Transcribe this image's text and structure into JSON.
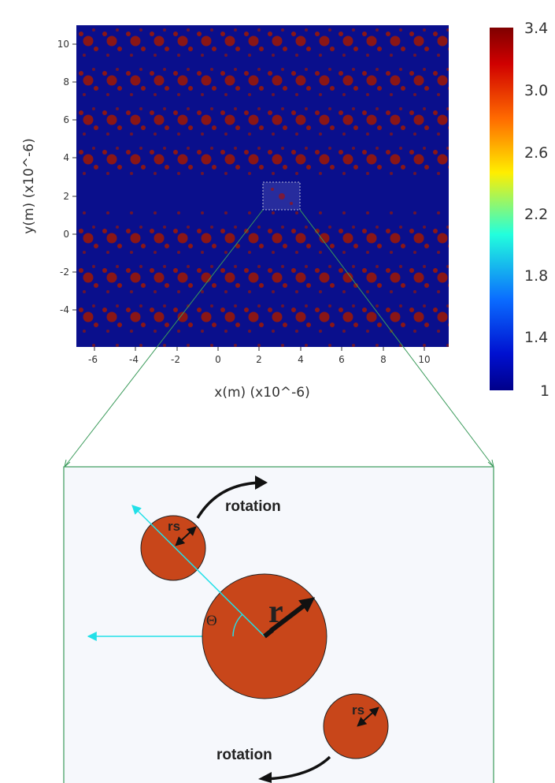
{
  "heatmap": {
    "x_ticks": [
      "-6",
      "-4",
      "-2",
      "0",
      "2",
      "4",
      "6",
      "8",
      "10"
    ],
    "y_ticks": [
      "10",
      "8",
      "6",
      "4",
      "2",
      "0",
      "-2",
      "-4"
    ],
    "xlabel": "x(m) (x10^-6)",
    "ylabel": "y(m) (x10^-6)",
    "background_color": "#0a0f8c",
    "feature_color": "#8a1616"
  },
  "colorbar": {
    "labels": [
      "3.4",
      "3.0",
      "2.6",
      "2.2",
      "1.8",
      "1.4",
      "1"
    ],
    "gradient": [
      "#7f0000",
      "#ee0000",
      "#ff8c00",
      "#ffff00",
      "#00ffff",
      "#0060ff",
      "#00008f"
    ]
  },
  "inset": {
    "big_radius_label": "r",
    "small_radius_label": "rs",
    "angle_label": "Θ",
    "rotation_label": "rotation",
    "particle_color": "#c8461a",
    "line_color": "#22e0e8",
    "frame_color": "#3a9a5a",
    "panel_color": "#f6f8fc"
  }
}
